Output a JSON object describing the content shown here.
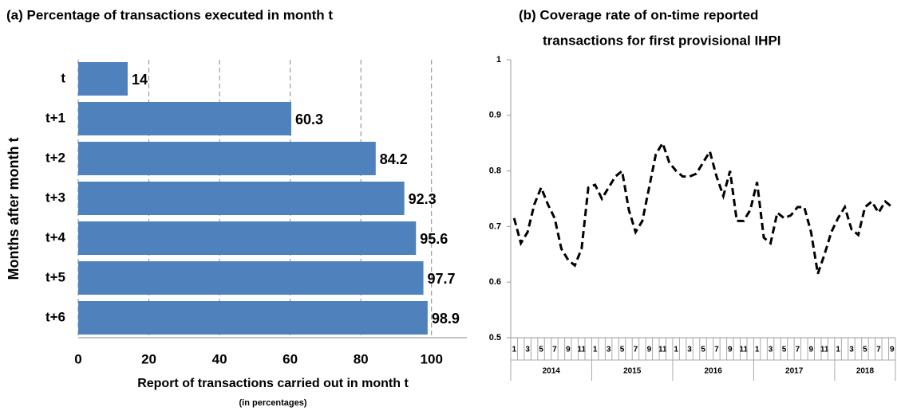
{
  "chart_data": [
    {
      "type": "hbar",
      "title": "(a) Percentage of transactions executed in month t",
      "categories": [
        "t",
        "t+1",
        "t+2",
        "t+3",
        "t+4",
        "t+5",
        "t+6"
      ],
      "values": [
        14,
        60.3,
        84.2,
        92.3,
        95.6,
        97.7,
        98.9
      ],
      "color": "#4f81bd",
      "xlim": [
        0,
        110
      ],
      "xticks": [
        0,
        20,
        40,
        60,
        80,
        100
      ],
      "grid": true,
      "xlabel": "Report of transactions carried out in month t",
      "xlabel_note": "(in percentages)",
      "ylabel": "Months after month t"
    },
    {
      "type": "line",
      "title": [
        "(b) Coverage rate of on-time reported",
        "transactions for first provisional IHPI"
      ],
      "categories": [
        "1",
        null,
        "3",
        null,
        "5",
        null,
        "7",
        null,
        "9",
        null,
        "11",
        null,
        "1",
        null,
        "3",
        null,
        "5",
        null,
        "7",
        null,
        "9",
        null,
        "11",
        null,
        "1",
        null,
        "3",
        null,
        "5",
        null,
        "7",
        null,
        "9",
        null,
        "11",
        null,
        "1",
        null,
        "3",
        null,
        "5",
        null,
        "7",
        null,
        "9",
        null,
        "11",
        null,
        "1",
        null,
        "3",
        null,
        "5",
        null,
        "7",
        null,
        "9"
      ],
      "years": [
        "2014",
        "2015",
        "2016",
        "2017",
        "2018"
      ],
      "series": [
        {
          "color": "#000000",
          "line_style": "dashed",
          "values": [
            0.715,
            0.67,
            0.69,
            0.74,
            0.77,
            0.74,
            0.715,
            0.66,
            0.64,
            0.63,
            0.66,
            0.77,
            0.775,
            0.75,
            0.77,
            0.79,
            0.8,
            0.73,
            0.69,
            0.71,
            0.77,
            0.83,
            0.85,
            0.815,
            0.8,
            0.79,
            0.79,
            0.795,
            0.815,
            0.835,
            0.79,
            0.755,
            0.8,
            0.71,
            0.71,
            0.73,
            0.78,
            0.68,
            0.67,
            0.725,
            0.715,
            0.72,
            0.735,
            0.735,
            0.69,
            0.615,
            0.65,
            0.69,
            0.715,
            0.735,
            0.695,
            0.685,
            0.735,
            0.745,
            0.725,
            0.745,
            0.735
          ]
        }
      ],
      "ylim": [
        0.5,
        1
      ],
      "yticks": [
        0.5,
        0.6,
        0.7,
        0.8,
        0.9,
        1
      ],
      "grid": false
    }
  ]
}
